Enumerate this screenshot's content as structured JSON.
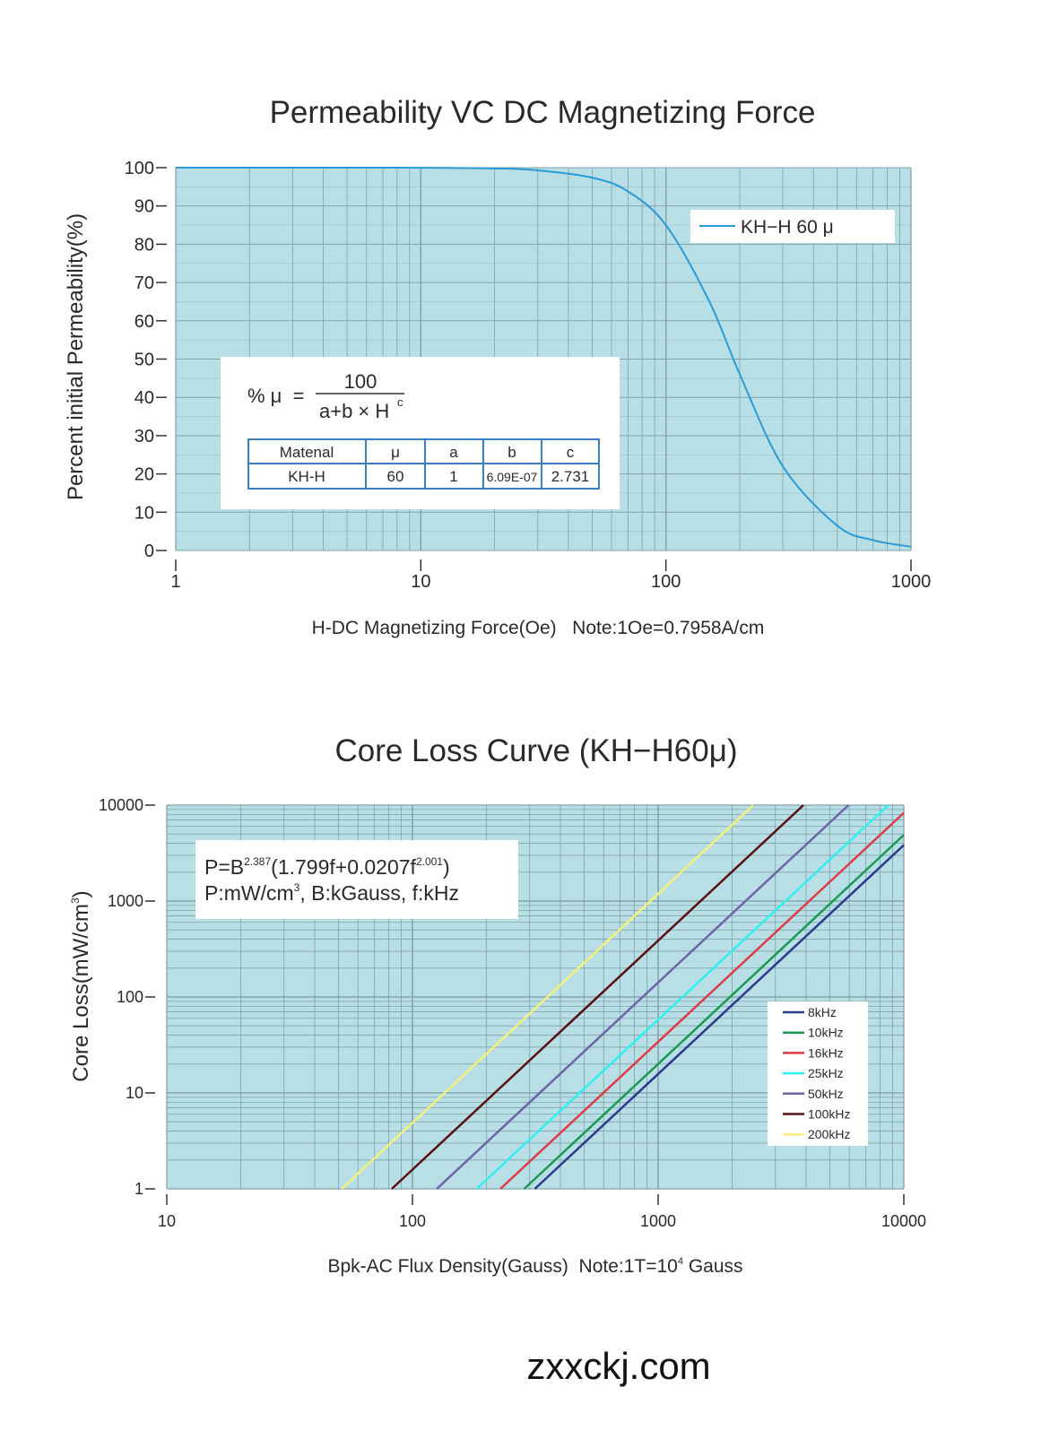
{
  "chart_data": [
    {
      "type": "line",
      "title": "Permeability VC DC Magnetizing Force",
      "xlabel": "H-DC Magnetizing Force(Oe)   Note:1Oe=0.7958A/cm",
      "ylabel": "Percent  initial  Permeability(%)",
      "xscale": "log",
      "xlim": [
        1,
        1000
      ],
      "ylim": [
        0,
        100
      ],
      "xticks": [
        "1",
        "10",
        "100",
        "1000"
      ],
      "yticks": [
        "0",
        "10",
        "20",
        "30",
        "40",
        "50",
        "60",
        "70",
        "80",
        "90",
        "100"
      ],
      "grid": true,
      "background": "#b9dfe6",
      "legend_position": "top-right",
      "series": [
        {
          "name": "KH−H 60 μ",
          "color": "#2a9bd6",
          "x": [
            1,
            2,
            5,
            10,
            20,
            30,
            50,
            70,
            100,
            150,
            200,
            300,
            500,
            700,
            1000
          ],
          "y": [
            100,
            100,
            99.99,
            99.97,
            99.8,
            99.3,
            97.4,
            93.8,
            85.0,
            65.2,
            46.1,
            22.0,
            6.5,
            2.7,
            1.0
          ]
        }
      ],
      "formula": {
        "lhs": "% μ  =",
        "numerator": "100",
        "denominator": "a+b × H",
        "exponent": "c"
      },
      "table": {
        "headers": [
          "Matenal",
          "μ",
          "a",
          "b",
          "c"
        ],
        "rows": [
          [
            "KH-H",
            "60",
            "1",
            "6.09E-07",
            "2.731"
          ]
        ]
      }
    },
    {
      "type": "line",
      "title": "Core Loss Curve (KH−H60μ)",
      "xlabel": "Bpk-AC Flux Density(Gauss)  Note:1T=10",
      "xlabel_sup": "4",
      "xlabel_tail": " Gauss",
      "ylabel": "Core Loss(mW/cm",
      "ylabel_sup": "3",
      "ylabel_tail": ")",
      "xscale": "log",
      "yscale": "log",
      "xlim": [
        10,
        10000
      ],
      "ylim": [
        1,
        10000
      ],
      "xticks": [
        "10",
        "100",
        "1000",
        "10000"
      ],
      "yticks": [
        "1",
        "10",
        "100",
        "1000",
        "10000"
      ],
      "grid": true,
      "background": "#b9dfe6",
      "legend_position": "bottom-right",
      "formula": {
        "line1_a": "P=B",
        "line1_sup1": "2.387",
        "line1_b": "(1.799f+0.0207f",
        "line1_sup2": "2.001",
        "line1_c": ")",
        "line2_a": "P:mW/cm",
        "line2_sup": "3",
        "line2_b": ", B:kGauss, f:kHz"
      },
      "series": [
        {
          "name": "8kHz",
          "color": "#2b3a8c",
          "x": [
            315,
            10000
          ],
          "y": [
            1,
            3834
          ]
        },
        {
          "name": "10kHz",
          "color": "#1a9a50",
          "x": [
            285,
            10000
          ],
          "y": [
            1,
            4887
          ]
        },
        {
          "name": "16kHz",
          "color": "#e03a44",
          "x": [
            228,
            10000
          ],
          "y": [
            1,
            8310
          ]
        },
        {
          "name": "25kHz",
          "color": "#2ef0f0",
          "x": [
            182.5,
            8650
          ],
          "y": [
            1,
            10000
          ]
        },
        {
          "name": "50kHz",
          "color": "#6c64a6",
          "x": [
            125.6,
            5954
          ],
          "y": [
            1,
            10000
          ]
        },
        {
          "name": "100kHz",
          "color": "#5a0f10",
          "x": [
            82.4,
            3904
          ],
          "y": [
            1,
            10000
          ]
        },
        {
          "name": "200kHz",
          "color": "#f5f07a",
          "x": [
            51.5,
            2440
          ],
          "y": [
            1,
            10000
          ]
        }
      ]
    }
  ],
  "footer": {
    "site": "zxxckj.com"
  }
}
